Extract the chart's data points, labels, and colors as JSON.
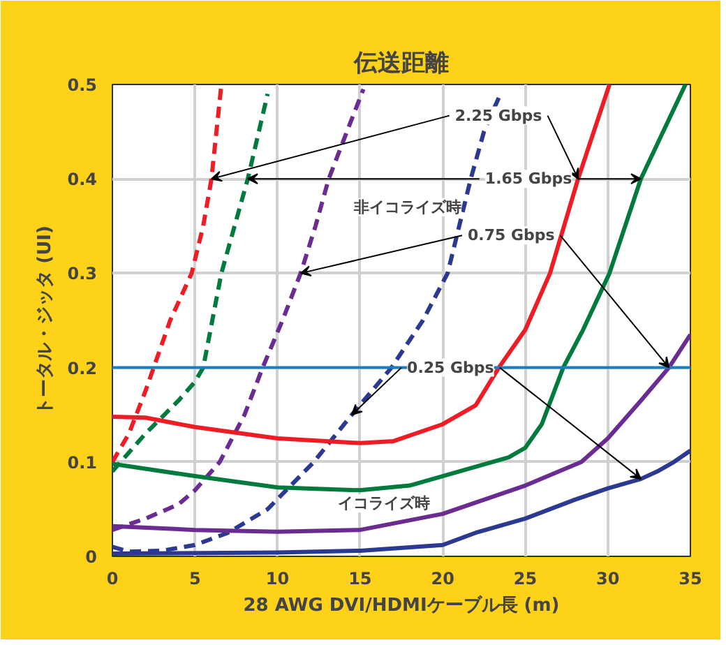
{
  "chart_data": {
    "type": "line",
    "title": "伝送距離",
    "xlabel": "28 AWG DVI/HDMIケーブル長 (m)",
    "ylabel": "トータル・ジッタ (UI)",
    "xlim": [
      0,
      35
    ],
    "xticks": [
      0,
      5,
      10,
      15,
      20,
      25,
      30,
      35
    ],
    "ylim": [
      0,
      0.5
    ],
    "yticks": [
      0,
      0.1,
      0.2,
      0.3,
      0.4,
      0.5
    ],
    "grid": true,
    "marker": "none",
    "ref_lines": [
      {
        "axis": "y",
        "value": 0.2,
        "color": "#1a7fc1",
        "line_style": "solid"
      }
    ],
    "series": [
      {
        "color": "#ee1c25",
        "line_style": "dashed",
        "x": [
          0,
          1,
          2,
          2.5,
          3.5,
          4.8,
          5.5,
          6,
          6.6
        ],
        "values": [
          0.1,
          0.13,
          0.175,
          0.2,
          0.25,
          0.3,
          0.35,
          0.4,
          0.5
        ]
      },
      {
        "color": "#007a3d",
        "line_style": "dashed",
        "x": [
          0,
          2,
          4,
          5,
          5.5,
          6.6,
          7.4,
          8.2,
          9.4
        ],
        "values": [
          0.09,
          0.13,
          0.165,
          0.185,
          0.2,
          0.3,
          0.35,
          0.4,
          0.49
        ]
      },
      {
        "color": "#6b2c91",
        "line_style": "dashed",
        "x": [
          0,
          2,
          4,
          5,
          6.5,
          8,
          9.1,
          10.3,
          11.4,
          12.3,
          13.1,
          14.2,
          15.2
        ],
        "values": [
          0.028,
          0.04,
          0.055,
          0.07,
          0.1,
          0.15,
          0.2,
          0.25,
          0.3,
          0.35,
          0.4,
          0.45,
          0.495
        ]
      },
      {
        "color": "#2b3990",
        "line_style": "dashed",
        "x": [
          0,
          1,
          3,
          5,
          7,
          9.4,
          12.2,
          14.5,
          16.9,
          18.8,
          20.3,
          21,
          21.7,
          22.5,
          23.4
        ],
        "values": [
          0.01,
          0.005,
          0.006,
          0.012,
          0.025,
          0.05,
          0.1,
          0.15,
          0.2,
          0.25,
          0.3,
          0.35,
          0.4,
          0.45,
          0.486
        ]
      },
      {
        "color": "#ee1c25",
        "line_style": "solid",
        "x": [
          0,
          2,
          5,
          10,
          15,
          17,
          20,
          22,
          23.4,
          25,
          26.5,
          28.2,
          30.1
        ],
        "values": [
          0.148,
          0.147,
          0.137,
          0.125,
          0.12,
          0.122,
          0.14,
          0.16,
          0.2,
          0.24,
          0.3,
          0.4,
          0.5
        ]
      },
      {
        "color": "#007a3d",
        "line_style": "solid",
        "x": [
          0,
          5,
          10,
          15,
          18,
          20,
          22,
          24,
          25,
          26,
          27.3,
          28.5,
          30.1,
          32,
          34.7
        ],
        "values": [
          0.098,
          0.085,
          0.073,
          0.07,
          0.075,
          0.085,
          0.095,
          0.105,
          0.115,
          0.14,
          0.2,
          0.24,
          0.3,
          0.4,
          0.5
        ]
      },
      {
        "color": "#6b2c91",
        "line_style": "solid",
        "x": [
          0,
          5,
          10,
          15,
          20,
          25,
          28.4,
          30,
          32,
          33.7,
          35
        ],
        "values": [
          0.032,
          0.028,
          0.026,
          0.028,
          0.045,
          0.075,
          0.1,
          0.125,
          0.165,
          0.2,
          0.235
        ]
      },
      {
        "color": "#2b3990",
        "line_style": "solid",
        "x": [
          0,
          10,
          15,
          20,
          22,
          25,
          28,
          30,
          32,
          33,
          34,
          35
        ],
        "values": [
          0.003,
          0.004,
          0.006,
          0.012,
          0.025,
          0.04,
          0.06,
          0.072,
          0.082,
          0.09,
          0.1,
          0.112
        ]
      }
    ],
    "annotations": [
      {
        "text": "2.25 Gbps",
        "x": 6,
        "y": 0.4
      },
      {
        "text": "1.65 Gbps",
        "x": 8.2,
        "y": 0.4
      },
      {
        "text": "0.75 Gbps",
        "x": 11.4,
        "y": 0.3
      },
      {
        "text": "0.25 Gbps",
        "x": 14.5,
        "y": 0.15
      },
      "非イコライズ時",
      "イコライズ時"
    ]
  }
}
